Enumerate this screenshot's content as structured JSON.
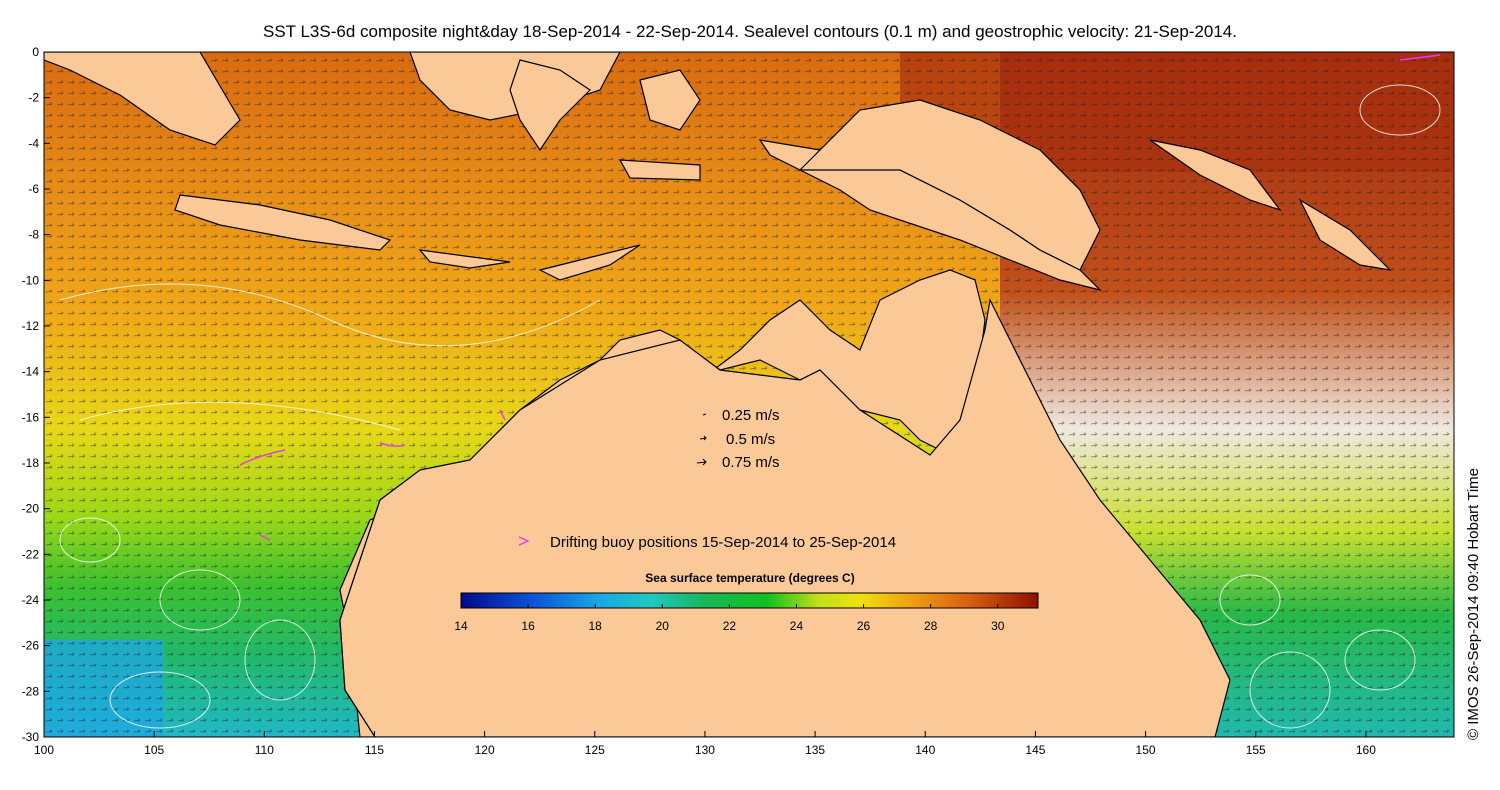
{
  "title": "SST L3S-6d composite night&day 18-Sep-2014 - 22-Sep-2014. Sealevel contours (0.1 m) and geostrophic velocity: 21-Sep-2014.",
  "credit": "© IMOS 26-Sep-2014 09:40 Hobart Time",
  "axes": {
    "x_ticks": [
      "100",
      "105",
      "110",
      "115",
      "120",
      "125",
      "130",
      "135",
      "140",
      "145",
      "150",
      "155",
      "160"
    ],
    "y_ticks": [
      "0",
      "-2",
      "-4",
      "-6",
      "-8",
      "-10",
      "-12",
      "-14",
      "-16",
      "-18",
      "-20",
      "-22",
      "-24",
      "-26",
      "-28",
      "-30"
    ],
    "xlim": [
      100,
      164
    ],
    "ylim": [
      -30,
      0
    ]
  },
  "velocity_legend": [
    {
      "label": "0.25 m/s"
    },
    {
      "label": "0.5 m/s"
    },
    {
      "label": "0.75 m/s"
    }
  ],
  "buoy_legend": {
    "label": "Drifting buoy positions 15-Sep-2014 to 25-Sep-2014",
    "color": "#e83ce8"
  },
  "colorbar": {
    "title": "Sea surface temperature (degrees C)",
    "ticks": [
      "14",
      "16",
      "18",
      "20",
      "22",
      "24",
      "26",
      "28",
      "30"
    ],
    "range": [
      14,
      31.2
    ],
    "colors": [
      "#000a8c",
      "#0032c8",
      "#0a6ee6",
      "#18a8e6",
      "#20c8d0",
      "#1ec8a0",
      "#18b85a",
      "#10c020",
      "#5ad018",
      "#b0e018",
      "#f0e810",
      "#f8c010",
      "#f0a010",
      "#e88018",
      "#d06010",
      "#b83a10",
      "#901000"
    ]
  },
  "land_color": "#fbc898"
}
